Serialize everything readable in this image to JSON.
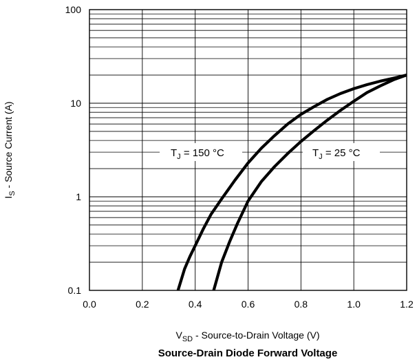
{
  "chart_data": {
    "type": "line",
    "title": "Source-Drain Diode Forward Voltage",
    "xlabel": {
      "main": "V",
      "sub": "SD",
      "rest": "  - Source-to-Drain Voltage (V)"
    },
    "ylabel": {
      "main": "I",
      "sub": "S",
      "rest": " - Source Current (A)"
    },
    "xlim": [
      0.0,
      1.2
    ],
    "ylim": [
      0.1,
      100
    ],
    "y_scale": "log",
    "x_ticks": [
      "0.0",
      "0.2",
      "0.4",
      "0.6",
      "0.8",
      "1.0",
      "1.2"
    ],
    "y_ticks": [
      "0.1",
      "1",
      "10",
      "100"
    ],
    "grid": true,
    "series": [
      {
        "name": {
          "main": "T",
          "sub": "J",
          "rest": " = 150 °C"
        },
        "x": [
          0.335,
          0.36,
          0.38,
          0.4,
          0.43,
          0.46,
          0.5,
          0.55,
          0.6,
          0.65,
          0.7,
          0.75,
          0.8,
          0.85,
          0.9,
          0.95,
          1.0,
          1.05,
          1.1,
          1.15,
          1.2
        ],
        "y": [
          0.1,
          0.17,
          0.23,
          0.3,
          0.45,
          0.65,
          0.95,
          1.5,
          2.3,
          3.3,
          4.5,
          6.0,
          7.6,
          9.2,
          11.0,
          12.7,
          14.3,
          15.8,
          17.2,
          18.5,
          20.0
        ]
      },
      {
        "name": {
          "main": "T",
          "sub": "J",
          "rest": " = 25 °C"
        },
        "x": [
          0.47,
          0.5,
          0.53,
          0.56,
          0.6,
          0.65,
          0.7,
          0.75,
          0.8,
          0.85,
          0.9,
          0.95,
          1.0,
          1.05,
          1.1,
          1.15,
          1.2
        ],
        "y": [
          0.1,
          0.2,
          0.33,
          0.52,
          0.9,
          1.45,
          2.1,
          2.9,
          3.9,
          5.1,
          6.6,
          8.4,
          10.5,
          13.0,
          15.3,
          17.8,
          20.0
        ]
      }
    ]
  }
}
